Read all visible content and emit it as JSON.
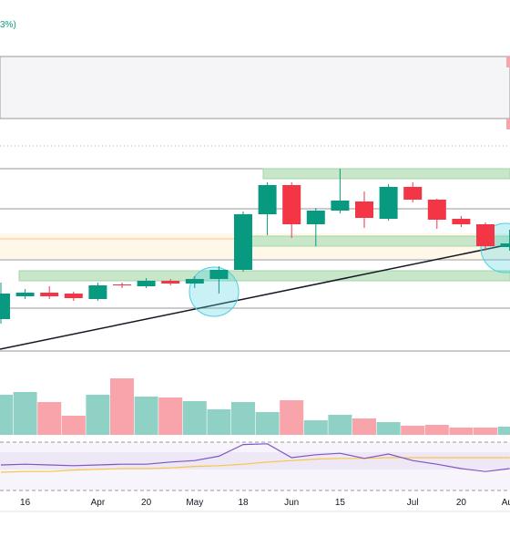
{
  "chart_data": {
    "type": "candlestick",
    "header_fragment": "3%)",
    "categories": [
      null,
      "16",
      null,
      null,
      "Apr",
      null,
      "20",
      null,
      "May",
      null,
      "18",
      null,
      "Jun",
      null,
      "15",
      null,
      null,
      "Jul",
      null,
      "20",
      null,
      "Aug"
    ],
    "open": [
      40,
      65,
      69,
      68,
      62,
      78,
      76,
      82,
      79,
      84,
      94,
      155,
      187,
      144,
      159,
      169,
      150,
      185,
      171,
      150,
      144,
      119
    ],
    "high": [
      80,
      73,
      76,
      70,
      80,
      80,
      85,
      84,
      87,
      98,
      158,
      190,
      190,
      162,
      205,
      180,
      188,
      190,
      172,
      153,
      146,
      138
    ],
    "low": [
      35,
      62,
      62,
      60,
      60,
      74,
      74,
      77,
      74,
      68,
      92,
      132,
      129,
      120,
      156,
      140,
      148,
      168,
      139,
      141,
      115,
      115
    ],
    "close": [
      68,
      69,
      65,
      63,
      77,
      77,
      82,
      79,
      84,
      94,
      155,
      187,
      144,
      159,
      170,
      151,
      185,
      171,
      149,
      144,
      120,
      123
    ],
    "up_color": "#089981",
    "down_color": "#f23645",
    "ylim": [
      0,
      330
    ],
    "volume": [
      44,
      47,
      36,
      21,
      44,
      62,
      42,
      41,
      37,
      28,
      36,
      25,
      38,
      16,
      22,
      18,
      14,
      10,
      11,
      8,
      8,
      9
    ],
    "volume_ylim": [
      0,
      70
    ],
    "rsi": [
      50,
      51,
      50,
      49,
      50,
      51,
      51,
      54,
      56,
      62,
      78,
      79,
      60,
      64,
      66,
      59,
      65,
      56,
      51,
      45,
      41,
      45
    ],
    "rsi_ma": [
      40,
      41,
      41,
      43,
      44,
      45,
      45,
      46,
      48,
      49,
      51,
      54,
      56,
      58,
      59,
      59,
      60,
      60,
      60,
      60,
      60,
      60
    ],
    "rsi_color": "#7e57c2",
    "rsi_ma_color": "#f7c548",
    "rsi_ylim": [
      0,
      100
    ]
  }
}
